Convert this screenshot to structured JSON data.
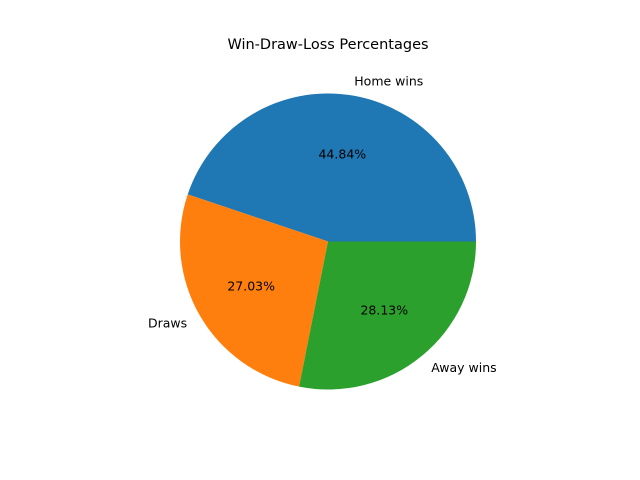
{
  "chart_data": {
    "type": "pie",
    "title": "Win-Draw-Loss Percentages",
    "labels": [
      "Home wins",
      "Draws",
      "Away wins"
    ],
    "values": [
      44.84,
      27.03,
      28.13
    ],
    "percent_labels": [
      "44.84%",
      "27.03%",
      "28.13%"
    ],
    "colors": [
      "#1f77b4",
      "#ff7f0e",
      "#2ca02c"
    ],
    "start_angle_deg": 0,
    "direction": "counterclockwise",
    "legend": "none"
  }
}
